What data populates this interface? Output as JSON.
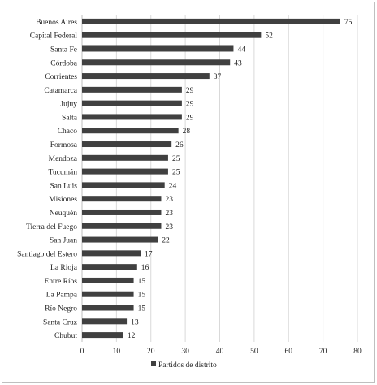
{
  "chart_data": {
    "type": "bar",
    "orientation": "horizontal",
    "categories": [
      "Buenos Aires",
      "Capital Federal",
      "Santa Fe",
      "Córdoba",
      "Corrientes",
      "Catamarca",
      "Jujuy",
      "Salta",
      "Chaco",
      "Formosa",
      "Mendoza",
      "Tucumán",
      "San Luis",
      "Misiones",
      "Neuquén",
      "Tierra del Fuego",
      "San Juan",
      "Santiago del Estero",
      "La Rioja",
      "Entre Ríos",
      "La Pampa",
      "Río Negro",
      "Santa Cruz",
      "Chubut"
    ],
    "series": [
      {
        "name": "Partidos de distrito",
        "values": [
          75,
          52,
          44,
          43,
          37,
          29,
          29,
          29,
          28,
          26,
          25,
          25,
          24,
          23,
          23,
          23,
          22,
          17,
          16,
          15,
          15,
          15,
          13,
          12
        ]
      }
    ],
    "xlim": [
      0,
      80
    ],
    "xticks": [
      0,
      10,
      20,
      30,
      40,
      50,
      60,
      70,
      80
    ],
    "grid": true,
    "legend_position": "bottom",
    "bar_color": "#404040",
    "grid_color": "#d9d9d9"
  }
}
